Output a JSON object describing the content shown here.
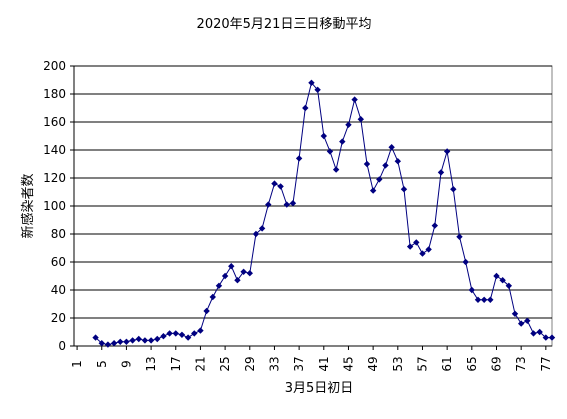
{
  "chart_data": {
    "type": "line",
    "title": "2020年5月21日三日移動平均",
    "xlabel": "3月5日初日",
    "ylabel": "新感染者数",
    "ylim": [
      0,
      200
    ],
    "yticks": [
      0,
      20,
      40,
      60,
      80,
      100,
      120,
      140,
      160,
      180,
      200
    ],
    "xlim": [
      1,
      77
    ],
    "xticks": [
      1,
      5,
      9,
      13,
      17,
      21,
      25,
      29,
      33,
      37,
      41,
      45,
      49,
      53,
      57,
      61,
      65,
      69,
      73,
      77
    ],
    "grid": true,
    "legend": "none",
    "series": [
      {
        "color": "#000080",
        "marker": "diamond",
        "points": [
          [
            4,
            6
          ],
          [
            5,
            2
          ],
          [
            6,
            1
          ],
          [
            7,
            2
          ],
          [
            8,
            3
          ],
          [
            9,
            3
          ],
          [
            10,
            4
          ],
          [
            11,
            5
          ],
          [
            12,
            4
          ],
          [
            13,
            4
          ],
          [
            14,
            5
          ],
          [
            15,
            7
          ],
          [
            16,
            9
          ],
          [
            17,
            9
          ],
          [
            18,
            8
          ],
          [
            19,
            6
          ],
          [
            20,
            9
          ],
          [
            21,
            11
          ],
          [
            22,
            25
          ],
          [
            23,
            35
          ],
          [
            24,
            43
          ],
          [
            25,
            50
          ],
          [
            26,
            57
          ],
          [
            27,
            47
          ],
          [
            28,
            53
          ],
          [
            29,
            52
          ],
          [
            30,
            80
          ],
          [
            31,
            84
          ],
          [
            32,
            101
          ],
          [
            33,
            116
          ],
          [
            34,
            114
          ],
          [
            35,
            101
          ],
          [
            36,
            102
          ],
          [
            37,
            134
          ],
          [
            38,
            170
          ],
          [
            39,
            188
          ],
          [
            40,
            183
          ],
          [
            41,
            150
          ],
          [
            42,
            139
          ],
          [
            43,
            126
          ],
          [
            44,
            146
          ],
          [
            45,
            158
          ],
          [
            46,
            176
          ],
          [
            47,
            162
          ],
          [
            48,
            130
          ],
          [
            49,
            111
          ],
          [
            50,
            119
          ],
          [
            51,
            129
          ],
          [
            52,
            142
          ],
          [
            53,
            132
          ],
          [
            54,
            112
          ],
          [
            55,
            71
          ],
          [
            56,
            74
          ],
          [
            57,
            66
          ],
          [
            58,
            69
          ],
          [
            59,
            86
          ],
          [
            60,
            124
          ],
          [
            61,
            139
          ],
          [
            62,
            112
          ],
          [
            63,
            78
          ],
          [
            64,
            60
          ],
          [
            65,
            40
          ],
          [
            66,
            33
          ],
          [
            67,
            33
          ],
          [
            68,
            33
          ],
          [
            69,
            50
          ],
          [
            70,
            47
          ],
          [
            71,
            43
          ],
          [
            72,
            23
          ],
          [
            73,
            16
          ],
          [
            74,
            18
          ],
          [
            75,
            9
          ],
          [
            76,
            10
          ],
          [
            77,
            6
          ],
          [
            78,
            6
          ]
        ]
      }
    ]
  }
}
